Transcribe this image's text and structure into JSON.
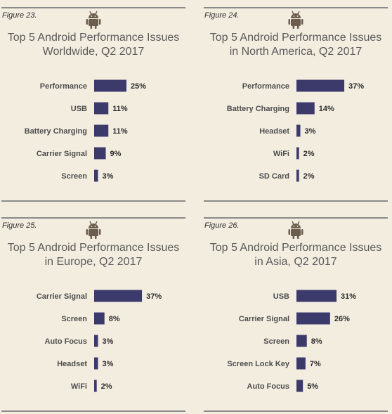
{
  "panels": [
    {
      "figure": "Figure 23.",
      "title_line1": "Top 5 Android Performance Issues",
      "title_line2": "Worldwide, Q2 2017"
    },
    {
      "figure": "Figure 24.",
      "title_line1": "Top 5 Android Performance Issues",
      "title_line2": "in North America, Q2 2017"
    },
    {
      "figure": "Figure 25.",
      "title_line1": "Top 5 Android Performance Issues",
      "title_line2": "in Europe, Q2 2017"
    },
    {
      "figure": "Figure 26.",
      "title_line1": "Top 5 Android Performance Issues",
      "title_line2": "in Asia, Q2 2017"
    }
  ],
  "colors": {
    "bar": "#3c3a6b",
    "background": "#f3ede0",
    "rule": "#8a8a8a",
    "icon": "#6b5e4e"
  },
  "icon": "android-robot-icon",
  "chart_data": [
    {
      "type": "bar",
      "orientation": "horizontal",
      "title": "Top 5 Android Performance Issues Worldwide, Q2 2017",
      "categories": [
        "Performance",
        "USB",
        "Battery Charging",
        "Carrier Signal",
        "Screen"
      ],
      "values": [
        25,
        11,
        11,
        9,
        3
      ],
      "value_labels": [
        "25%",
        "11%",
        "11%",
        "9%",
        "3%"
      ],
      "unit": "%"
    },
    {
      "type": "bar",
      "orientation": "horizontal",
      "title": "Top 5 Android Performance Issues in North America, Q2 2017",
      "categories": [
        "Performance",
        "Battery Charging",
        "Headset",
        "WiFi",
        "SD Card"
      ],
      "values": [
        37,
        14,
        3,
        2,
        2
      ],
      "value_labels": [
        "37%",
        "14%",
        "3%",
        "2%",
        "2%"
      ],
      "unit": "%"
    },
    {
      "type": "bar",
      "orientation": "horizontal",
      "title": "Top 5 Android Performance Issues in Europe, Q2 2017",
      "categories": [
        "Carrier Signal",
        "Screen",
        "Auto Focus",
        "Headset",
        "WiFi"
      ],
      "values": [
        37,
        8,
        3,
        3,
        2
      ],
      "value_labels": [
        "37%",
        "8%",
        "3%",
        "3%",
        "2%"
      ],
      "unit": "%"
    },
    {
      "type": "bar",
      "orientation": "horizontal",
      "title": "Top 5 Android Performance Issues in Asia, Q2 2017",
      "categories": [
        "USB",
        "Carrier Signal",
        "Screen",
        "Screen Lock Key",
        "Auto Focus"
      ],
      "values": [
        31,
        26,
        8,
        7,
        5
      ],
      "value_labels": [
        "31%",
        "26%",
        "8%",
        "7%",
        "5%"
      ],
      "unit": "%"
    }
  ]
}
